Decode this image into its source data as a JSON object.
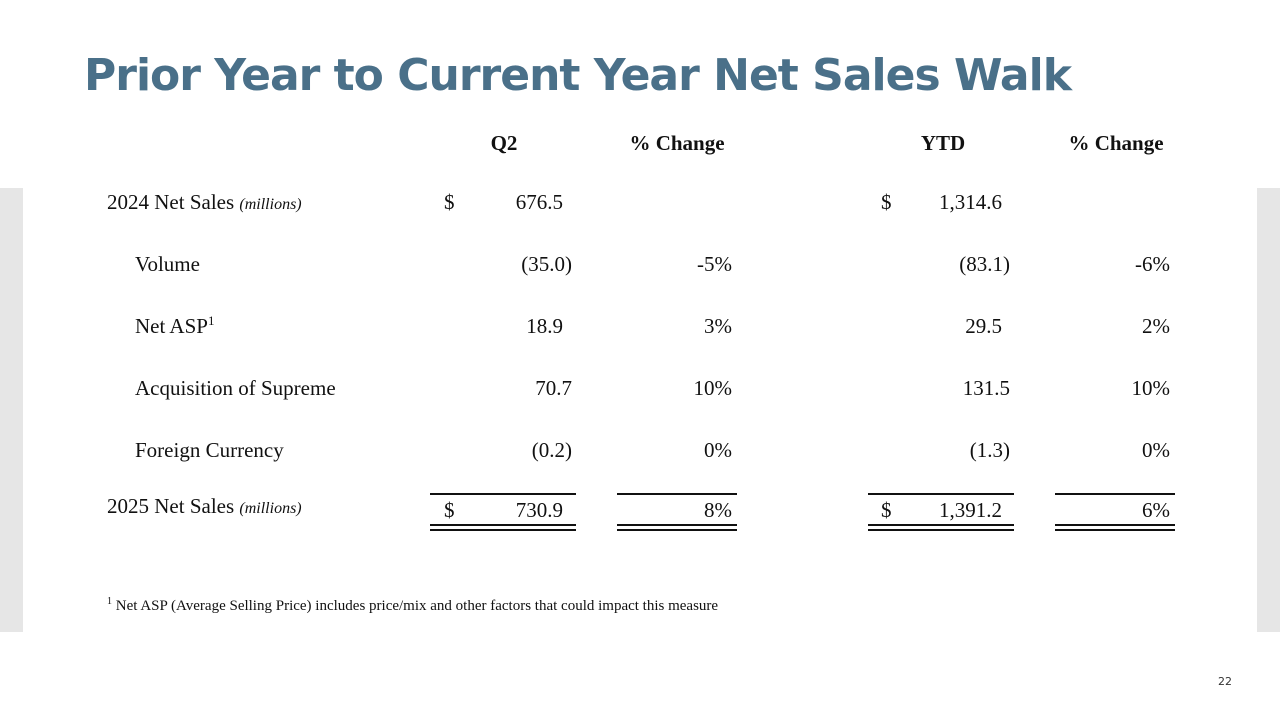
{
  "title": "Prior Year to Current Year Net Sales Walk",
  "headers": {
    "q2": "Q2",
    "q2_change": "% Change",
    "ytd": "YTD",
    "ytd_change": "% Change"
  },
  "units": "(millions)",
  "currency": "$",
  "rows": [
    {
      "label": "2024 Net Sales",
      "q2": "676.5",
      "q2_change": "",
      "ytd": "1,314.6",
      "ytd_change": ""
    },
    {
      "label": "Volume",
      "q2": "(35.0)",
      "q2_change": "-5%",
      "ytd": "(83.1)",
      "ytd_change": "-6%"
    },
    {
      "label": "Net ASP",
      "footnote_ref": "1",
      "q2": "18.9",
      "q2_change": "3%",
      "ytd": "29.5",
      "ytd_change": "2%"
    },
    {
      "label": "Acquisition of Supreme",
      "q2": "70.7",
      "q2_change": "10%",
      "ytd": "131.5",
      "ytd_change": "10%"
    },
    {
      "label": "Foreign Currency",
      "q2": "(0.2)",
      "q2_change": "0%",
      "ytd": "(1.3)",
      "ytd_change": "0%"
    },
    {
      "label": "2025 Net Sales",
      "q2": "730.9",
      "q2_change": "8%",
      "ytd": "1,391.2",
      "ytd_change": "6%"
    }
  ],
  "footnote": {
    "marker": "1",
    "text": "Net ASP (Average Selling Price) includes price/mix and other factors that could impact this measure"
  },
  "page_number": "22"
}
